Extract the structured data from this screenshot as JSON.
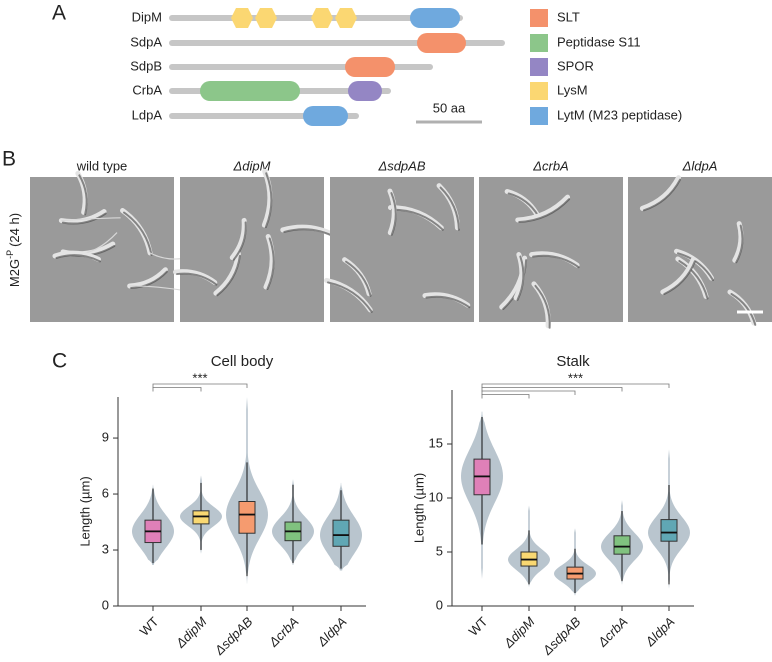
{
  "panel_labels": [
    "A",
    "B",
    "C"
  ],
  "domain_diagram": {
    "proteins": [
      "DipM",
      "SdpA",
      "SdpB",
      "CrbA",
      "LdpA"
    ],
    "legend": [
      {
        "label": "SLT",
        "color": "#f4916b"
      },
      {
        "label": "Peptidase S11",
        "color": "#8cc68a"
      },
      {
        "label": "SPOR",
        "color": "#9486c4"
      },
      {
        "label": "LysM",
        "color": "#fbd772"
      },
      {
        "label": "LytM (M23 peptidase)",
        "color": "#6fa9de"
      }
    ],
    "scale_label": "50 aa"
  },
  "micrographs": {
    "condition": "M2G",
    "condition_superscript": "-P",
    "condition_suffix": "(24 h)",
    "strains": [
      "wild type",
      "ΔdipM",
      "ΔsdpAB",
      "ΔcrbA",
      "ΔldpA"
    ]
  },
  "chart_data": [
    {
      "type": "box",
      "title": "Cell body",
      "ylabel": "Length (µm)",
      "categories": [
        "WT",
        "ΔdipM",
        "ΔsdpAB",
        "ΔcrbA",
        "ΔldpA"
      ],
      "ylim": [
        0,
        11.2
      ],
      "yticks": [
        0,
        3,
        6,
        9
      ],
      "violin_color": "#b9c5ce",
      "boxes": [
        {
          "whisker_low": 2.3,
          "q1": 3.4,
          "median": 4.0,
          "q3": 4.6,
          "whisker_high": 6.3,
          "violin_min": 2.2,
          "violin_max": 6.5,
          "color": "#df80b8"
        },
        {
          "whisker_low": 3.0,
          "q1": 4.4,
          "median": 4.8,
          "q3": 5.1,
          "whisker_high": 6.6,
          "violin_min": 2.8,
          "violin_max": 7.0,
          "color": "#f9d872"
        },
        {
          "whisker_low": 1.6,
          "q1": 3.9,
          "median": 4.9,
          "q3": 5.6,
          "whisker_high": 7.7,
          "violin_min": 1.2,
          "violin_max": 11.2,
          "color": "#f59b6f"
        },
        {
          "whisker_low": 2.3,
          "q1": 3.5,
          "median": 4.0,
          "q3": 4.5,
          "whisker_high": 6.5,
          "violin_min": 2.2,
          "violin_max": 6.8,
          "color": "#80c27f"
        },
        {
          "whisker_low": 2.0,
          "q1": 3.2,
          "median": 3.8,
          "q3": 4.6,
          "whisker_high": 6.2,
          "violin_min": 1.9,
          "violin_max": 6.6,
          "color": "#60a7b4"
        }
      ],
      "significance_label": "***",
      "comparisons": [
        [
          0,
          2
        ],
        [
          0,
          1
        ]
      ]
    },
    {
      "type": "box",
      "title": "Stalk",
      "ylabel": "Length (µm)",
      "categories": [
        "WT",
        "ΔdipM",
        "ΔsdpAB",
        "ΔcrbA",
        "ΔldpA"
      ],
      "ylim": [
        0,
        20
      ],
      "yticks": [
        0,
        5,
        10,
        15
      ],
      "violin_color": "#b9c5ce",
      "boxes": [
        {
          "whisker_low": 5.7,
          "q1": 10.3,
          "median": 12.0,
          "q3": 13.6,
          "whisker_high": 17.5,
          "violin_min": 2.5,
          "violin_max": 18.0,
          "color": "#df80b8"
        },
        {
          "whisker_low": 2.0,
          "q1": 3.7,
          "median": 4.3,
          "q3": 5.0,
          "whisker_high": 7.0,
          "violin_min": 1.8,
          "violin_max": 9.3,
          "color": "#f9d872"
        },
        {
          "whisker_low": 1.2,
          "q1": 2.5,
          "median": 3.0,
          "q3": 3.6,
          "whisker_high": 5.3,
          "violin_min": 1.0,
          "violin_max": 7.2,
          "color": "#f59b6f"
        },
        {
          "whisker_low": 2.3,
          "q1": 4.8,
          "median": 5.5,
          "q3": 6.5,
          "whisker_high": 8.8,
          "violin_min": 2.0,
          "violin_max": 9.8,
          "color": "#80c27f"
        },
        {
          "whisker_low": 2.0,
          "q1": 6.0,
          "median": 6.8,
          "q3": 8.0,
          "whisker_high": 11.2,
          "violin_min": 1.6,
          "violin_max": 14.5,
          "color": "#60a7b4"
        }
      ],
      "significance_label": "***",
      "comparisons": [
        [
          0,
          4
        ],
        [
          0,
          3
        ],
        [
          0,
          2
        ],
        [
          0,
          1
        ]
      ]
    }
  ]
}
